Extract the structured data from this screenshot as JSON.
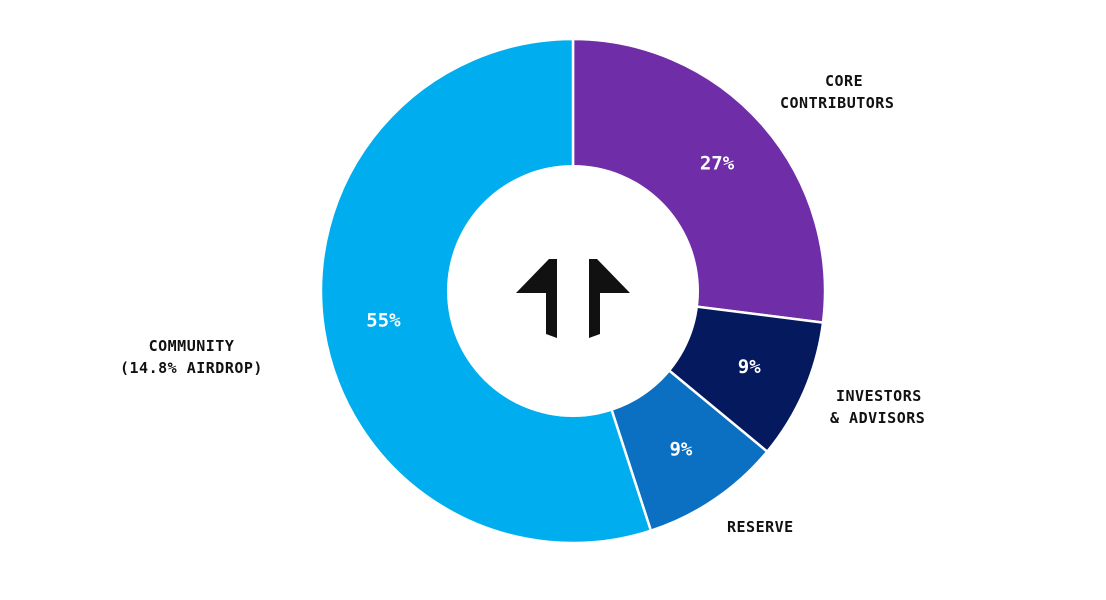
{
  "chart_data": {
    "type": "pie",
    "donut": true,
    "categories": [
      "Core Contributors",
      "Investors & Advisors",
      "Reserve",
      "Community"
    ],
    "values": [
      27,
      9,
      9,
      55
    ],
    "colors": [
      "#6f2da8",
      "#04195e",
      "#0b6fc2",
      "#00aeef"
    ],
    "data_labels": [
      "27%",
      "9%",
      "9%",
      "55%"
    ],
    "category_labels": [
      [
        "CORE",
        "CONTRIBUTORS"
      ],
      [
        "INVESTORS",
        "& ADVISORS"
      ],
      [
        "RESERVE"
      ],
      [
        "COMMUNITY",
        "(14.8% AIRDROP)"
      ]
    ],
    "center_icon": "double-arrow-up-logo-icon",
    "legend": "none"
  }
}
